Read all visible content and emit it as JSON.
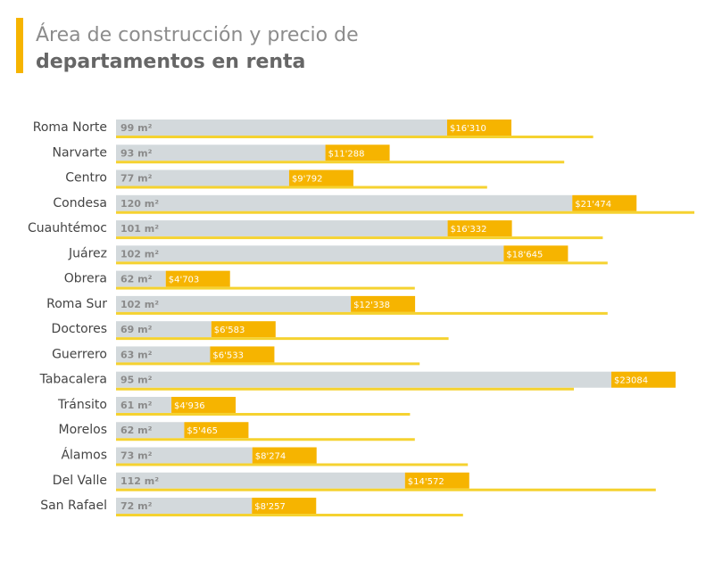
{
  "chart_data": {
    "type": "bar",
    "orientation": "horizontal",
    "title": [
      "Área de construcción y precio de",
      "departamentos en renta"
    ],
    "categories": [
      "Roma Norte",
      "Narvarte",
      "Centro",
      "Condesa",
      "Cuauhtémoc",
      "Juárez",
      "Obrera",
      "Roma Sur",
      "Doctores",
      "Guerrero",
      "Tabacalera",
      "Tránsito",
      "Morelos",
      "Álamos",
      "Del Valle",
      "San Rafael"
    ],
    "series": [
      {
        "color": "#f6b400",
        "bar_color": "#d3d9dc",
        "values": [
          16310,
          11288,
          9792,
          21474,
          16332,
          18645,
          4703,
          12338,
          6583,
          6533,
          23084,
          4936,
          5465,
          8274,
          14572,
          8257
        ],
        "value_labels": [
          "$16'310",
          "$11'288",
          "$9'792",
          "$21'474",
          "$16'332",
          "$18'645",
          "$4'703",
          "$12'338",
          "$6'583",
          "$6'533",
          "$23084",
          "$4'936",
          "$5'465",
          "$8'274",
          "$14'572",
          "$8'257"
        ]
      },
      {
        "color": "#f5d230",
        "values": [
          99,
          93,
          77,
          120,
          101,
          102,
          62,
          102,
          69,
          63,
          95,
          61,
          62,
          73,
          112,
          72
        ],
        "value_labels": [
          "99 m²",
          "93 m²",
          "77 m²",
          "120 m²",
          "101 m²",
          "102 m²",
          "62 m²",
          "102 m²",
          "69 m²",
          "63 m²",
          "95 m²",
          "61 m²",
          "62 m²",
          "73 m²",
          "112 m²",
          "72 m²"
        ]
      }
    ]
  }
}
